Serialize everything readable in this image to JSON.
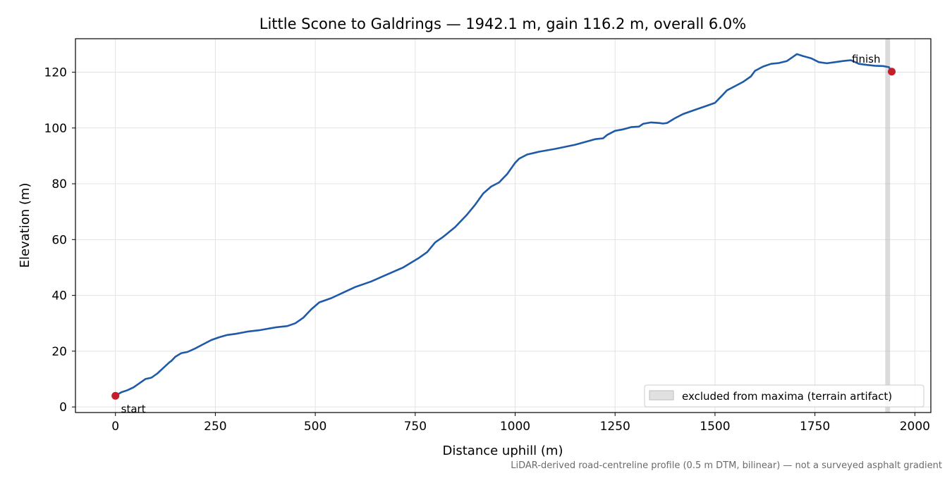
{
  "chart_data": {
    "type": "line",
    "title": "Little Scone to Galdrings — 1942.1 m, gain 116.2 m, overall 6.0%",
    "xlabel": "Distance uphill (m)",
    "ylabel": "Elevation (m)",
    "xlim": [
      -100,
      2040
    ],
    "ylim": [
      -2,
      132
    ],
    "xticks": [
      0,
      250,
      500,
      750,
      1000,
      1250,
      1500,
      1750,
      2000
    ],
    "yticks": [
      0,
      20,
      40,
      60,
      80,
      100,
      120
    ],
    "grid": true,
    "legend": {
      "placement": "lower-right",
      "label": "excluded from maxima (terrain artifact)"
    },
    "footnote": "LiDAR-derived road-centreline profile (0.5 m DTM, bilinear) — not a surveyed asphalt gradient",
    "excluded_region": {
      "x_start": 1926,
      "x_end": 1938
    },
    "series": [
      {
        "x": [
          0,
          15,
          30,
          45,
          60,
          75,
          90,
          105,
          120,
          135,
          140,
          150,
          165,
          180,
          200,
          220,
          240,
          260,
          280,
          300,
          330,
          360,
          400,
          430,
          450,
          470,
          490,
          510,
          540,
          570,
          600,
          640,
          680,
          720,
          760,
          780,
          800,
          820,
          850,
          880,
          900,
          920,
          940,
          960,
          980,
          1000,
          1010,
          1030,
          1060,
          1100,
          1150,
          1200,
          1220,
          1230,
          1250,
          1270,
          1290,
          1310,
          1320,
          1340,
          1360,
          1370,
          1380,
          1400,
          1420,
          1450,
          1480,
          1500,
          1510,
          1520,
          1530,
          1550,
          1570,
          1590,
          1600,
          1620,
          1640,
          1660,
          1680,
          1695,
          1705,
          1720,
          1740,
          1760,
          1780,
          1800,
          1820,
          1840,
          1860,
          1880,
          1900,
          1920,
          1935,
          1942.1
        ],
        "y": [
          4,
          5.3,
          6.0,
          7.0,
          8.5,
          10.0,
          10.5,
          12.0,
          14.0,
          16.0,
          16.5,
          18.0,
          19.3,
          19.7,
          21.0,
          22.5,
          24.0,
          25.0,
          25.8,
          26.2,
          27.0,
          27.5,
          28.5,
          29.0,
          30.0,
          32.0,
          35.0,
          37.5,
          39.0,
          41.0,
          43.0,
          45.0,
          47.5,
          50.0,
          53.5,
          55.5,
          59.0,
          61.0,
          64.5,
          69.0,
          72.5,
          76.5,
          79.0,
          80.5,
          83.5,
          87.5,
          89.0,
          90.5,
          91.5,
          92.5,
          94.0,
          96.0,
          96.3,
          97.5,
          99.0,
          99.5,
          100.3,
          100.5,
          101.5,
          102.0,
          101.8,
          101.6,
          101.8,
          103.5,
          105.0,
          106.5,
          108.0,
          109.0,
          110.5,
          112.0,
          113.5,
          115.0,
          116.5,
          118.5,
          120.5,
          122.0,
          123.0,
          123.3,
          124.0,
          125.5,
          126.5,
          125.8,
          125.0,
          123.6,
          123.2,
          123.6,
          124.0,
          124.3,
          123.0,
          122.6,
          122.3,
          122.2,
          121.8,
          120.2
        ]
      }
    ],
    "markers": [
      {
        "x": 0,
        "y": 4.0,
        "label": "start"
      },
      {
        "x": 1942.1,
        "y": 120.2,
        "label": "finish"
      }
    ],
    "colors": {
      "line": "#1f5aa8",
      "marker": "#c41e2d",
      "excluded": "#bdbdbd",
      "grid": "#e3e3e3"
    }
  }
}
